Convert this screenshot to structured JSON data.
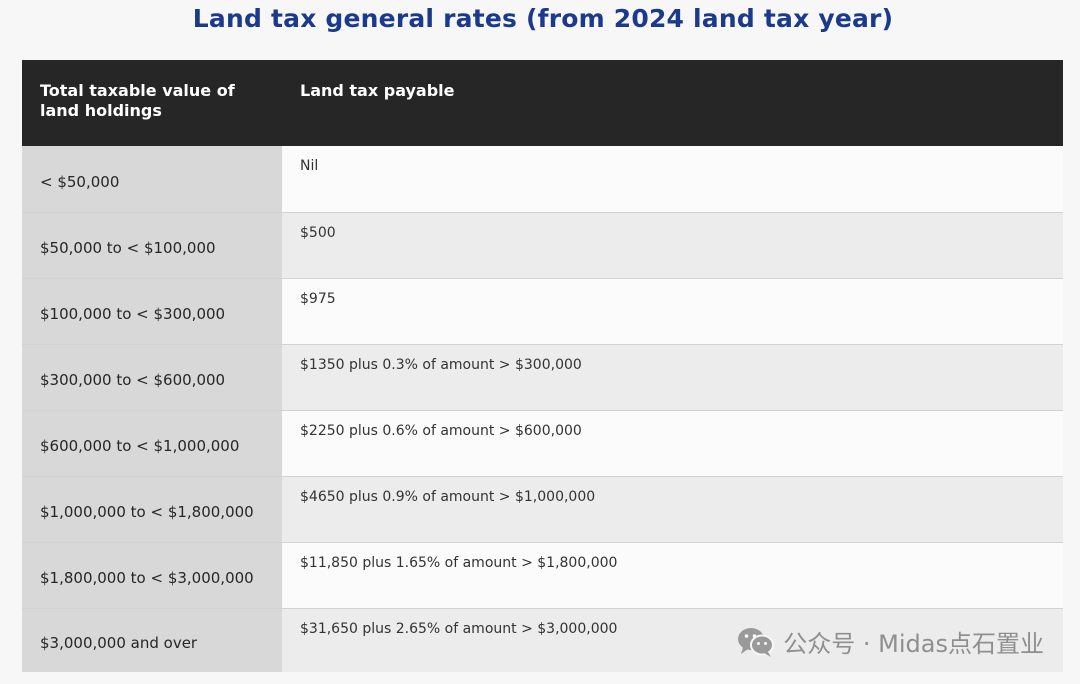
{
  "title": "Land tax general rates (from 2024 land tax year)",
  "table": {
    "headers": {
      "value": "Total taxable value of land holdings",
      "payable": "Land tax payable"
    },
    "rows": [
      {
        "value": "< $50,000",
        "payable": "Nil"
      },
      {
        "value": "$50,000 to < $100,000",
        "payable": "$500"
      },
      {
        "value": "$100,000 to < $300,000",
        "payable": "$975"
      },
      {
        "value": "$300,000 to < $600,000",
        "payable": "$1350 plus 0.3% of amount > $300,000"
      },
      {
        "value": "$600,000 to < $1,000,000",
        "payable": "$2250 plus 0.6% of amount > $600,000"
      },
      {
        "value": "$1,000,000 to < $1,800,000",
        "payable": "$4650 plus 0.9% of amount > $1,000,000"
      },
      {
        "value": "$1,800,000 to < $3,000,000",
        "payable": "$11,850 plus 1.65% of amount > $1,800,000"
      },
      {
        "value": "$3,000,000 and over",
        "payable": "$31,650 plus 2.65% of amount > $3,000,000"
      }
    ]
  },
  "watermark": {
    "icon": "wechat-icon",
    "text": "公众号 · Midas点石置业"
  }
}
